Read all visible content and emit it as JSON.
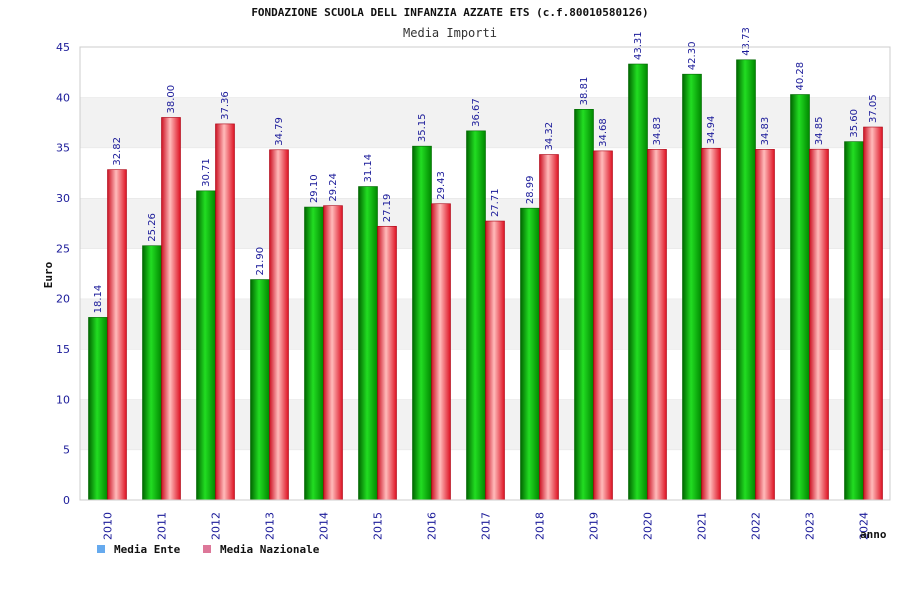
{
  "chart_data": {
    "type": "bar",
    "title": "FONDAZIONE SCUOLA DELL INFANZIA AZZATE ETS (c.f.80010580126)",
    "subtitle": "Media Importi",
    "xlabel": "anno",
    "ylabel": "Euro",
    "ylim": [
      0,
      45
    ],
    "yticks": [
      0,
      5,
      10,
      15,
      20,
      25,
      30,
      35,
      40,
      45
    ],
    "grid": "horizontal bands",
    "legend_position": "bottom-left",
    "categories": [
      "2010",
      "2011",
      "2012",
      "2013",
      "2014",
      "2015",
      "2016",
      "2017",
      "2018",
      "2019",
      "2020",
      "2021",
      "2022",
      "2023",
      "2024"
    ],
    "series": [
      {
        "name": "Media Ente",
        "color": "#00bb00",
        "values": [
          18.14,
          25.26,
          30.71,
          21.9,
          29.1,
          31.14,
          35.15,
          36.67,
          28.99,
          38.81,
          43.31,
          42.3,
          43.73,
          40.28,
          35.6
        ],
        "labels": [
          "18.14",
          "25.26",
          "30.71",
          "21.90",
          "29.10",
          "31.14",
          "35.15",
          "36.67",
          "28.99",
          "38.81",
          "43.31",
          "42.30",
          "43.73",
          "40.28",
          "35.60"
        ]
      },
      {
        "name": "Media Nazionale",
        "color": "#ee2233",
        "values": [
          32.82,
          38.0,
          37.36,
          34.79,
          29.24,
          27.19,
          29.43,
          27.71,
          34.32,
          34.68,
          34.83,
          34.94,
          34.83,
          34.85,
          37.05
        ],
        "labels": [
          "32.82",
          "38.00",
          "37.36",
          "34.79",
          "29.24",
          "27.19",
          "29.43",
          "27.71",
          "34.32",
          "34.68",
          "34.83",
          "34.94",
          "34.83",
          "34.85",
          "37.05"
        ]
      }
    ],
    "legend": [
      {
        "label": "Media Ente",
        "swatch_color": "#66aaee"
      },
      {
        "label": "Media Nazionale",
        "swatch_color": "#dd7799"
      }
    ]
  }
}
